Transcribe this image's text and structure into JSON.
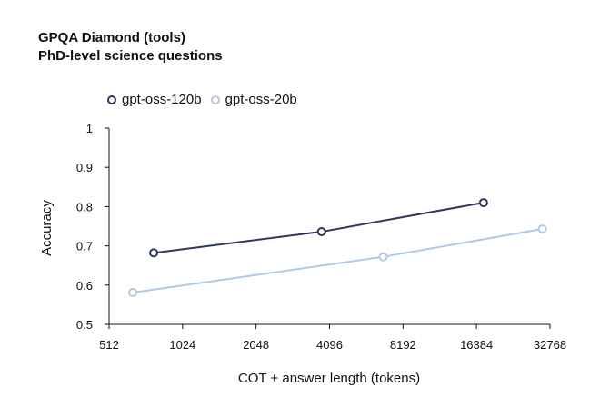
{
  "chart_data": {
    "type": "line",
    "title": "GPQA Diamond (tools)",
    "subtitle": "PhD-level science questions",
    "xlabel": "COT + answer length (tokens)",
    "ylabel": "Accuracy",
    "xscale": "log2",
    "xlim": [
      512,
      32768
    ],
    "ylim": [
      0.5,
      1.0
    ],
    "x_ticks": [
      512,
      1024,
      2048,
      4096,
      8192,
      16384,
      32768
    ],
    "x_tick_labels": [
      "512",
      "1024",
      "2048",
      "4096",
      "8192",
      "16384",
      "32768"
    ],
    "y_ticks": [
      0.5,
      0.6,
      0.7,
      0.8,
      0.9,
      1.0
    ],
    "y_tick_labels": [
      "0.5",
      "0.6",
      "0.7",
      "0.8",
      "0.9",
      "1"
    ],
    "grid": false,
    "legend_position": "top-left",
    "series": [
      {
        "name": "gpt-oss-120b",
        "color": "#2e3a5c",
        "x": [
          780,
          3800,
          17500
        ],
        "y": [
          0.682,
          0.736,
          0.81
        ]
      },
      {
        "name": "gpt-oss-20b",
        "color": "#b3c8e3",
        "x": [
          640,
          6800,
          30500
        ],
        "y": [
          0.581,
          0.672,
          0.743
        ]
      }
    ]
  }
}
